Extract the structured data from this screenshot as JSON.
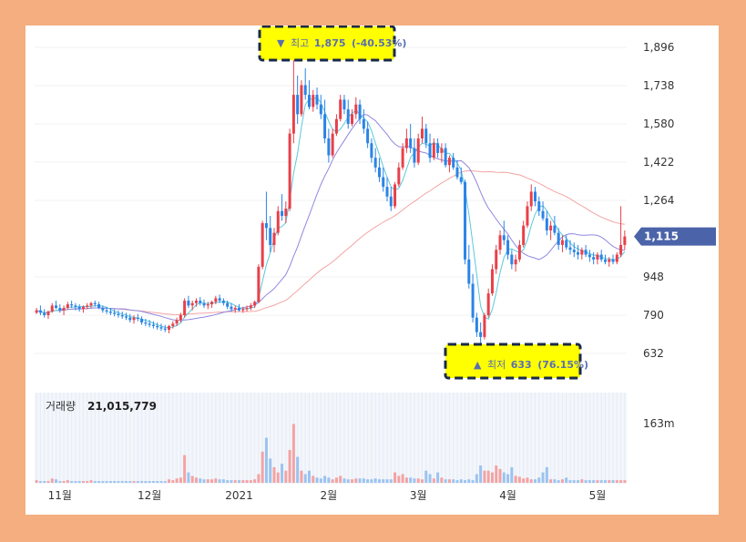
{
  "chart_data": {
    "type": "candlestick",
    "price_axis": {
      "ticks": [
        "1,896",
        "1,738",
        "1,580",
        "1,422",
        "1,264",
        "948",
        "790",
        "632"
      ],
      "values": [
        1896,
        1738,
        1580,
        1422,
        1264,
        948,
        790,
        632
      ],
      "ylim": [
        580,
        1960
      ]
    },
    "current_price": {
      "label": "1,115",
      "value": 1115
    },
    "x_labels": [
      "11월",
      "12월",
      "2021",
      "2월",
      "3월",
      "4월",
      "5월"
    ],
    "high_marker": {
      "arrow": "▼",
      "label": "최고",
      "value": "1,875",
      "change": "(-40.53%)"
    },
    "low_marker": {
      "arrow": "▲",
      "label": "최저",
      "value": "633",
      "change": "(76.15%)"
    },
    "volume": {
      "title": "거래량",
      "value": "21,015,779",
      "axis_label": "163m"
    },
    "colors": {
      "up": "#e8404a",
      "down": "#2b84e6",
      "ma_short": "#5cc8dc",
      "ma_mid": "#8f88e0",
      "ma_long": "#f3a4a4",
      "price_tag": "#4b63a8",
      "vol_up": "#f3a3a3",
      "vol_down": "#9cc3ef"
    },
    "candles": [
      [
        800,
        820,
        795,
        810
      ],
      [
        810,
        830,
        790,
        800
      ],
      [
        800,
        815,
        780,
        790
      ],
      [
        790,
        810,
        775,
        805
      ],
      [
        805,
        840,
        800,
        830
      ],
      [
        830,
        850,
        815,
        820
      ],
      [
        820,
        835,
        800,
        810
      ],
      [
        810,
        830,
        790,
        820
      ],
      [
        820,
        845,
        815,
        835
      ],
      [
        835,
        850,
        820,
        830
      ],
      [
        830,
        840,
        810,
        825
      ],
      [
        825,
        835,
        805,
        815
      ],
      [
        815,
        830,
        800,
        825
      ],
      [
        825,
        840,
        815,
        830
      ],
      [
        830,
        845,
        820,
        840
      ],
      [
        840,
        850,
        825,
        835
      ],
      [
        835,
        845,
        815,
        820
      ],
      [
        820,
        830,
        800,
        810
      ],
      [
        810,
        825,
        795,
        805
      ],
      [
        805,
        820,
        790,
        800
      ],
      [
        800,
        815,
        785,
        795
      ],
      [
        795,
        810,
        780,
        790
      ],
      [
        790,
        805,
        775,
        785
      ],
      [
        785,
        800,
        770,
        780
      ],
      [
        780,
        795,
        760,
        770
      ],
      [
        770,
        790,
        755,
        780
      ],
      [
        780,
        795,
        765,
        775
      ],
      [
        775,
        785,
        750,
        760
      ],
      [
        760,
        775,
        745,
        755
      ],
      [
        755,
        770,
        740,
        750
      ],
      [
        750,
        765,
        735,
        745
      ],
      [
        745,
        760,
        730,
        740
      ],
      [
        740,
        755,
        725,
        735
      ],
      [
        735,
        750,
        720,
        730
      ],
      [
        730,
        750,
        715,
        745
      ],
      [
        745,
        765,
        735,
        755
      ],
      [
        755,
        780,
        745,
        770
      ],
      [
        770,
        800,
        760,
        790
      ],
      [
        790,
        860,
        780,
        850
      ],
      [
        850,
        870,
        820,
        830
      ],
      [
        830,
        850,
        810,
        840
      ],
      [
        840,
        860,
        825,
        850
      ],
      [
        850,
        865,
        830,
        840
      ],
      [
        840,
        855,
        820,
        830
      ],
      [
        830,
        845,
        815,
        835
      ],
      [
        835,
        850,
        820,
        845
      ],
      [
        845,
        870,
        835,
        860
      ],
      [
        860,
        875,
        840,
        850
      ],
      [
        850,
        860,
        830,
        840
      ],
      [
        840,
        850,
        815,
        825
      ],
      [
        825,
        840,
        805,
        815
      ],
      [
        815,
        830,
        800,
        820
      ],
      [
        820,
        835,
        805,
        810
      ],
      [
        810,
        825,
        800,
        815
      ],
      [
        815,
        830,
        805,
        820
      ],
      [
        820,
        840,
        810,
        830
      ],
      [
        830,
        850,
        820,
        845
      ],
      [
        845,
        1000,
        840,
        990
      ],
      [
        990,
        1180,
        980,
        1170
      ],
      [
        1170,
        1300,
        1100,
        1150
      ],
      [
        1150,
        1200,
        1050,
        1080
      ],
      [
        1080,
        1150,
        1050,
        1130
      ],
      [
        1130,
        1240,
        1120,
        1220
      ],
      [
        1220,
        1290,
        1180,
        1200
      ],
      [
        1200,
        1260,
        1170,
        1230
      ],
      [
        1230,
        1560,
        1220,
        1540
      ],
      [
        1540,
        1875,
        1500,
        1700
      ],
      [
        1700,
        1780,
        1580,
        1620
      ],
      [
        1620,
        1760,
        1610,
        1740
      ],
      [
        1740,
        1810,
        1680,
        1700
      ],
      [
        1700,
        1760,
        1640,
        1650
      ],
      [
        1650,
        1720,
        1630,
        1700
      ],
      [
        1700,
        1730,
        1640,
        1660
      ],
      [
        1660,
        1700,
        1600,
        1620
      ],
      [
        1620,
        1680,
        1500,
        1520
      ],
      [
        1520,
        1560,
        1420,
        1450
      ],
      [
        1450,
        1560,
        1440,
        1540
      ],
      [
        1540,
        1620,
        1530,
        1600
      ],
      [
        1600,
        1700,
        1590,
        1680
      ],
      [
        1680,
        1700,
        1620,
        1640
      ],
      [
        1640,
        1680,
        1560,
        1580
      ],
      [
        1580,
        1640,
        1570,
        1620
      ],
      [
        1620,
        1690,
        1600,
        1660
      ],
      [
        1660,
        1680,
        1580,
        1600
      ],
      [
        1600,
        1640,
        1540,
        1560
      ],
      [
        1560,
        1590,
        1480,
        1500
      ],
      [
        1500,
        1520,
        1420,
        1440
      ],
      [
        1440,
        1480,
        1380,
        1400
      ],
      [
        1400,
        1440,
        1340,
        1360
      ],
      [
        1360,
        1400,
        1300,
        1320
      ],
      [
        1320,
        1360,
        1260,
        1280
      ],
      [
        1280,
        1320,
        1220,
        1240
      ],
      [
        1240,
        1340,
        1230,
        1330
      ],
      [
        1330,
        1420,
        1320,
        1400
      ],
      [
        1400,
        1500,
        1390,
        1480
      ],
      [
        1480,
        1560,
        1460,
        1520
      ],
      [
        1520,
        1580,
        1460,
        1480
      ],
      [
        1480,
        1520,
        1400,
        1420
      ],
      [
        1420,
        1540,
        1410,
        1520
      ],
      [
        1520,
        1610,
        1500,
        1560
      ],
      [
        1560,
        1580,
        1480,
        1500
      ],
      [
        1500,
        1540,
        1420,
        1440
      ],
      [
        1440,
        1520,
        1430,
        1500
      ],
      [
        1500,
        1520,
        1440,
        1460
      ],
      [
        1460,
        1500,
        1420,
        1480
      ],
      [
        1480,
        1500,
        1400,
        1410
      ],
      [
        1410,
        1450,
        1380,
        1440
      ],
      [
        1440,
        1460,
        1390,
        1400
      ],
      [
        1400,
        1430,
        1350,
        1360
      ],
      [
        1360,
        1400,
        1330,
        1340
      ],
      [
        1340,
        1350,
        1000,
        1020
      ],
      [
        1020,
        1080,
        900,
        920
      ],
      [
        920,
        960,
        760,
        780
      ],
      [
        780,
        800,
        700,
        720
      ],
      [
        720,
        760,
        633,
        700
      ],
      [
        700,
        800,
        690,
        790
      ],
      [
        790,
        900,
        780,
        880
      ],
      [
        880,
        1000,
        870,
        980
      ],
      [
        980,
        1080,
        960,
        1060
      ],
      [
        1060,
        1140,
        1040,
        1120
      ],
      [
        1120,
        1180,
        1080,
        1100
      ],
      [
        1100,
        1120,
        1020,
        1040
      ],
      [
        1040,
        1060,
        980,
        1000
      ],
      [
        1000,
        1040,
        970,
        1020
      ],
      [
        1020,
        1100,
        1010,
        1080
      ],
      [
        1080,
        1180,
        1070,
        1160
      ],
      [
        1160,
        1260,
        1150,
        1240
      ],
      [
        1240,
        1330,
        1220,
        1300
      ],
      [
        1300,
        1320,
        1240,
        1260
      ],
      [
        1260,
        1280,
        1200,
        1220
      ],
      [
        1220,
        1260,
        1180,
        1190
      ],
      [
        1190,
        1220,
        1120,
        1140
      ],
      [
        1140,
        1180,
        1100,
        1160
      ],
      [
        1160,
        1200,
        1120,
        1130
      ],
      [
        1130,
        1150,
        1060,
        1080
      ],
      [
        1080,
        1120,
        1050,
        1100
      ],
      [
        1100,
        1120,
        1060,
        1070
      ],
      [
        1070,
        1100,
        1040,
        1060
      ],
      [
        1060,
        1090,
        1030,
        1050
      ],
      [
        1050,
        1080,
        1020,
        1040
      ],
      [
        1040,
        1070,
        1020,
        1060
      ],
      [
        1060,
        1080,
        1030,
        1040
      ],
      [
        1040,
        1060,
        1010,
        1030
      ],
      [
        1030,
        1050,
        1000,
        1020
      ],
      [
        1020,
        1050,
        1000,
        1040
      ],
      [
        1040,
        1060,
        1010,
        1020
      ],
      [
        1020,
        1040,
        1000,
        1010
      ],
      [
        1010,
        1030,
        990,
        1020
      ],
      [
        1020,
        1040,
        1000,
        1010
      ],
      [
        1010,
        1050,
        1000,
        1040
      ],
      [
        1040,
        1240,
        1030,
        1080
      ],
      [
        1080,
        1140,
        1060,
        1115
      ]
    ],
    "volume_values": [
      0.03,
      0.02,
      0.02,
      0.02,
      0.05,
      0.04,
      0.02,
      0.02,
      0.03,
      0.02,
      0.02,
      0.02,
      0.02,
      0.02,
      0.03,
      0.02,
      0.02,
      0.02,
      0.02,
      0.02,
      0.02,
      0.02,
      0.02,
      0.02,
      0.02,
      0.02,
      0.02,
      0.02,
      0.02,
      0.02,
      0.02,
      0.02,
      0.02,
      0.02,
      0.04,
      0.03,
      0.05,
      0.06,
      0.32,
      0.12,
      0.08,
      0.06,
      0.05,
      0.04,
      0.04,
      0.04,
      0.05,
      0.04,
      0.04,
      0.03,
      0.03,
      0.03,
      0.03,
      0.03,
      0.03,
      0.03,
      0.04,
      0.1,
      0.36,
      0.52,
      0.28,
      0.18,
      0.12,
      0.22,
      0.14,
      0.38,
      0.68,
      0.3,
      0.14,
      0.1,
      0.14,
      0.08,
      0.06,
      0.05,
      0.08,
      0.06,
      0.04,
      0.06,
      0.08,
      0.05,
      0.04,
      0.04,
      0.05,
      0.05,
      0.05,
      0.04,
      0.04,
      0.05,
      0.04,
      0.04,
      0.04,
      0.04,
      0.12,
      0.08,
      0.1,
      0.06,
      0.06,
      0.05,
      0.05,
      0.04,
      0.14,
      0.1,
      0.05,
      0.12,
      0.06,
      0.04,
      0.04,
      0.04,
      0.03,
      0.04,
      0.03,
      0.04,
      0.03,
      0.1,
      0.2,
      0.14,
      0.14,
      0.12,
      0.2,
      0.16,
      0.12,
      0.1,
      0.18,
      0.08,
      0.07,
      0.05,
      0.06,
      0.04,
      0.04,
      0.06,
      0.12,
      0.18,
      0.04,
      0.04,
      0.03,
      0.04,
      0.06,
      0.03,
      0.03,
      0.03,
      0.04,
      0.03,
      0.03,
      0.03,
      0.03,
      0.03,
      0.03,
      0.03,
      0.03,
      0.03,
      0.03,
      0.03,
      0.03,
      0.03,
      0.03,
      0.24,
      0.18
    ],
    "x_label_indices": [
      6,
      29,
      52,
      75,
      98,
      121,
      144
    ]
  }
}
